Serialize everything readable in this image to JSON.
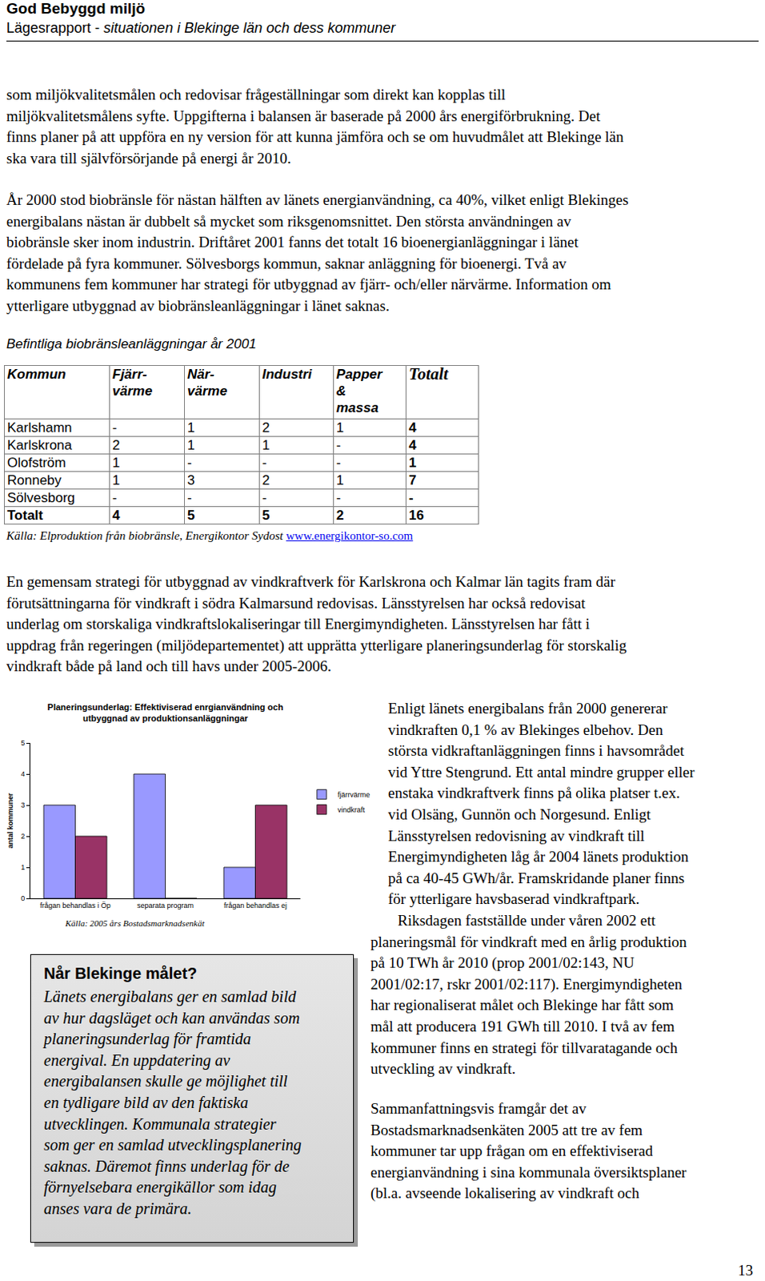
{
  "header": {
    "title": "God Bebyggd miljö",
    "subtitle_plain": "Lägesrapport - ",
    "subtitle_italic": "situationen i Blekinge län och dess kommuner"
  },
  "paragraphs": [
    [
      "som miljökvalitetsmålen och redovisar frågeställningar som direkt kan kopplas till",
      "miljökvalitetsmålens syfte. Uppgifterna i balansen är baserade på 2000 års energiförbrukning. Det",
      "finns planer på att uppföra en ny version för att kunna jämföra och se om huvudmålet att Blekinge län",
      "ska vara till självförsörjande på energi år 2010."
    ],
    [
      "År 2000 stod biobränsle för nästan hälften av länets energianvändning, ca 40%, vilket enligt Blekinges",
      "energibalans nästan är dubbelt så mycket som riksgenomsnittet. Den största användningen av",
      "biobränsle sker inom industrin. Driftåret 2001 fanns det totalt 16 bioenergianläggningar i länet",
      "fördelade på fyra kommuner. Sölvesborgs kommun, saknar anläggning för bioenergi. Två av",
      "kommunens fem kommuner har strategi för utbyggnad av fjärr- och/eller närvärme. Information om",
      "ytterligare utbyggnad av biobränsleanläggningar i länet saknas."
    ],
    [
      "En gemensam strategi för utbyggnad av vindkraftverk för Karlskrona och Kalmar län tagits fram där",
      "förutsättningarna för vindkraft i södra Kalmarsund redovisas. Länsstyrelsen har också redovisat",
      "underlag om storskaliga vindkraftslokaliseringar till Energimyndigheten. Länsstyrelsen har fått i",
      "uppdrag från regeringen (miljödepartementet) att upprätta ytterligare planeringsunderlag för storskalig",
      "vindkraft både på land och till havs under 2005-2006."
    ]
  ],
  "table": {
    "caption": "Befintliga biobränsleanläggningar år 2001",
    "columns": [
      [
        "Kommun"
      ],
      [
        "Fjärr-",
        "värme"
      ],
      [
        "När-",
        "värme"
      ],
      [
        "Industri"
      ],
      [
        "Papper",
        "&",
        "massa"
      ],
      [
        "Totalt"
      ]
    ],
    "rows": [
      [
        "Karlshamn",
        "-",
        1,
        2,
        1,
        4
      ],
      [
        "Karlskrona",
        2,
        1,
        1,
        "-",
        4
      ],
      [
        "Olofström",
        1,
        "-",
        "-",
        "-",
        1
      ],
      [
        "Ronneby",
        1,
        3,
        2,
        1,
        7
      ],
      [
        "Sölvesborg",
        "-",
        "-",
        "-",
        "-",
        "-"
      ],
      [
        "Totalt",
        4,
        5,
        5,
        2,
        16
      ]
    ],
    "source": "Källa: Elproduktion från biobränsle, Energikontor Sydost ",
    "source_link": "www.energikontor-so.com"
  },
  "chart_data": {
    "type": "bar",
    "title": [
      "Planeringsunderlag: Effektiviserad enrgianvändning och",
      "utbyggnad av produktionsanläggningar"
    ],
    "y_label": "antal kommuner",
    "categories": [
      "frågan behandlas i Öp",
      "separata program",
      "frågan behandlas ej"
    ],
    "series": [
      {
        "name": "fjärrvärme",
        "color": "#9999ff",
        "values": [
          3,
          4,
          1
        ]
      },
      {
        "name": "vindkraft",
        "color": "#993366",
        "values": [
          2,
          0,
          3
        ]
      }
    ],
    "ylim": [
      0,
      5
    ],
    "yticks": [
      0,
      1,
      2,
      3,
      4,
      5
    ],
    "grid": false,
    "legend": "right",
    "annotation": "Källa: 2005 års Bostadsmarknadsenkät"
  },
  "box": {
    "title": "Når Blekinge målet?",
    "lines": [
      "Länets energibalans ger en samlad bild",
      "av hur dagsläget och kan användas som",
      "planeringsunderlag för framtida",
      "energival. En uppdatering av",
      "energibalansen skulle ge möjlighet till",
      "en tydligare bild av den faktiska",
      "utvecklingen. Kommunala strategier",
      "som ger en samlad utvecklingsplanering",
      "saknas. Däremot finns underlag för de",
      "förnyelsebara energikällor som idag",
      "anses vara de primära."
    ]
  },
  "right_column": {
    "paragraph_1": [
      "Enligt länets energibalans från 2000 genererar",
      "vindkraften 0,1 % av Blekinges elbehov. Den",
      "största vidkraftanläggningen finns i havsområdet",
      "vid Yttre Stengrund. Ett antal mindre grupper eller",
      "enstaka vindkraftverk finns på olika platser t.ex.",
      "vid Olsäng, Gunnön och Norgesund. Enligt",
      "Länsstyrelsen redovisning av vindkraft till",
      "Energimyndigheten låg år 2004 länets produktion",
      "på ca 40-45 GWh/år. Framskridande planer finns",
      "för ytterligare havsbaserad vindkraftpark."
    ],
    "paragraph_2_first_line": "Riksdagen fastställde under våren 2002 ett",
    "paragraph_2": [
      "planeringsmål för vindkraft med en årlig produktion",
      "på 10 TWh år 2010 (prop 2001/02:143, NU",
      "2001/02:17, rskr 2001/02:117). Energimyndigheten",
      "har regionaliserat målet och Blekinge har fått som",
      "mål att producera 191 GWh till 2010. I två av fem",
      "kommuner finns en strategi för tillvaratagande och",
      "utveckling av vindkraft."
    ],
    "summary": [
      "Sammanfattningsvis framgår det av",
      "Bostadsmarknadsenkäten 2005 att tre av fem",
      "kommuner tar upp frågan om en effektiviserad",
      "energianvändning i sina kommunala översiktsplaner",
      "(bl.a. avseende lokalisering av vindkraft och"
    ]
  },
  "page_number": "13"
}
